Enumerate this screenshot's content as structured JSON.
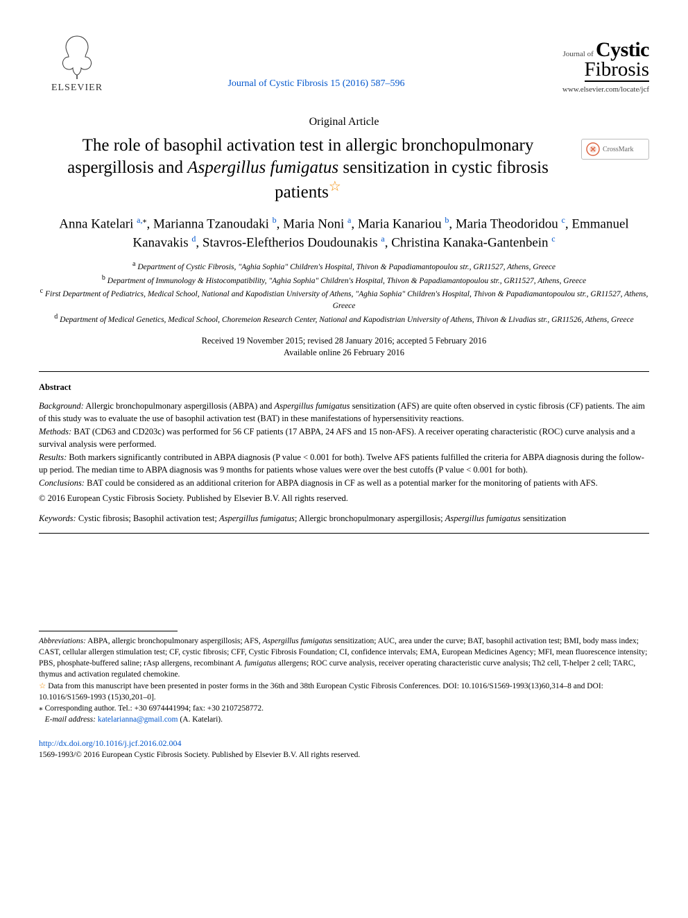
{
  "header": {
    "publisher": "ELSEVIER",
    "journal_ref_text": "Journal of Cystic Fibrosis 15 (2016) 587–596",
    "journal_ref_color": "#0055cc",
    "journal_logo_small": "Journal of",
    "journal_logo_main": "Cystic",
    "journal_logo_sub": "Fibrosis",
    "journal_url": "www.elsevier.com/locate/jcf"
  },
  "article_type": "Original Article",
  "title_pre": "The role of basophil activation test in allergic bronchopulmonary aspergillosis and ",
  "title_ital": "Aspergillus fumigatus",
  "title_post": " sensitization in cystic fibrosis patients",
  "crossmark_label": "CrossMark",
  "authors_html": "Anna Katelari <sup>a,</sup><sup class='sup-plain'>⁎</sup>, Marianna Tzanoudaki <sup>b</sup>, Maria Noni <sup>a</sup>, Maria Kanariou <sup>b</sup>, Maria Theodoridou <sup>c</sup>, Emmanuel Kanavakis <sup>d</sup>, Stavros-Eleftherios Doudounakis <sup>a</sup>, Christina Kanaka-Gantenbein <sup>c</sup>",
  "affiliations": {
    "a": "Department of Cystic Fibrosis, \"Aghia Sophia\" Children's Hospital, Thivon & Papadiamantopoulou str., GR11527, Athens, Greece",
    "b": "Department of Immunology & Histocompatibility, \"Aghia Sophia\" Children's Hospital, Thivon & Papadiamantopoulou str., GR11527, Athens, Greece",
    "c": "First Department of Pediatrics, Medical School, National and Kapodistian University of Athens, \"Aghia Sophia\" Children's Hospital, Thivon & Papadiamantopoulou str., GR11527, Athens, Greece",
    "d": "Department of Medical Genetics, Medical School, Choremeion Research Center, National and Kapodistrian University of Athens, Thivon & Livadias str., GR11526, Athens, Greece"
  },
  "dates_line1": "Received 19 November 2015; revised 28 January 2016; accepted 5 February 2016",
  "dates_line2": "Available online 26 February 2016",
  "abstract": {
    "heading": "Abstract",
    "background_label": "Background:",
    "background_text_pre": " Allergic bronchopulmonary aspergillosis (ABPA) and ",
    "background_text_ital": "Aspergillus fumigatus",
    "background_text_post": " sensitization (AFS) are quite often observed in cystic fibrosis (CF) patients. The aim of this study was to evaluate the use of basophil activation test (BAT) in these manifestations of hypersensitivity reactions.",
    "methods_label": "Methods:",
    "methods_text": " BAT (CD63 and CD203c) was performed for 56 CF patients (17 ABPA, 24 AFS and 15 non-AFS). A receiver operating characteristic (ROC) curve analysis and a survival analysis were performed.",
    "results_label": "Results:",
    "results_text": " Both markers significantly contributed in ABPA diagnosis (P value < 0.001 for both). Twelve AFS patients fulfilled the criteria for ABPA diagnosis during the follow-up period. The median time to ABPA diagnosis was 9 months for patients whose values were over the best cutoffs (P value < 0.001 for both).",
    "conclusions_label": "Conclusions:",
    "conclusions_text": " BAT could be considered as an additional criterion for ABPA diagnosis in CF as well as a potential marker for the monitoring of patients with AFS.",
    "copyright": "© 2016 European Cystic Fibrosis Society. Published by Elsevier B.V. All rights reserved."
  },
  "keywords": {
    "label": "Keywords:",
    "text_pre": " Cystic fibrosis; Basophil activation test; ",
    "text_ital1": "Aspergillus fumigatus",
    "text_mid": "; Allergic bronchopulmonary aspergillosis; ",
    "text_ital2": "Aspergillus fumigatus",
    "text_post": " sensitization"
  },
  "footnotes": {
    "abbrev_label": "Abbreviations:",
    "abbrev_text_pre": " ABPA, allergic bronchopulmonary aspergillosis; AFS, ",
    "abbrev_text_ital1": "Aspergillus fumigatus",
    "abbrev_text_mid": " sensitization; AUC, area under the curve; BAT, basophil activation test; BMI, body mass index; CAST, cellular allergen stimulation test; CF, cystic fibrosis; CFF, Cystic Fibrosis Foundation; CI, confidence intervals; EMA, European Medicines Agency; MFI, mean fluorescence intensity; PBS, phosphate-buffered saline; rAsp allergens, recombinant ",
    "abbrev_text_ital2": "A. fumigatus",
    "abbrev_text_post": " allergens; ROC curve analysis, receiver operating characteristic curve analysis; Th2 cell, T-helper 2 cell; TARC, thymus and activation regulated chemokine.",
    "star_note": " Data from this manuscript have been presented in poster forms in the 36th and 38th European Cystic Fibrosis Conferences. DOI: 10.1016/S1569-1993(13)60,314–8 and DOI: 10.1016/S1569-1993 (15)30,201–0].",
    "corr_label": "⁎",
    "corr_text": " Corresponding author. Tel.: +30 6974441994; fax: +30 2107258772.",
    "email_label": "E-mail address:",
    "email": "katelarianna@gmail.com",
    "email_post": " (A. Katelari)."
  },
  "doi": {
    "url": "http://dx.doi.org/10.1016/j.jcf.2016.02.004",
    "issn_line": "1569-1993/© 2016 European Cystic Fibrosis Society. Published by Elsevier B.V. All rights reserved."
  },
  "colors": {
    "link": "#0055cc",
    "star": "#f38b00",
    "text": "#000000",
    "bg": "#ffffff"
  }
}
